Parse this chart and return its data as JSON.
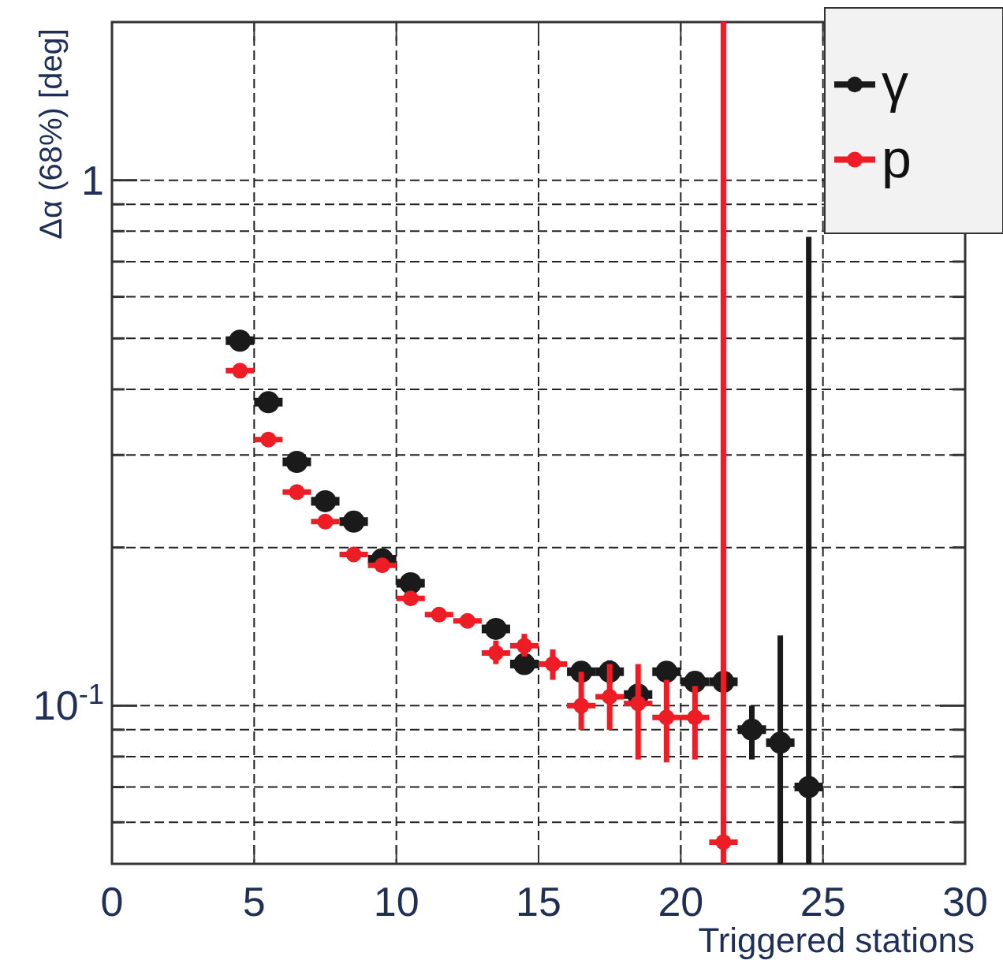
{
  "chart_data": {
    "type": "scatter",
    "xlabel": "Triggered stations",
    "ylabel": "Δα (68%) [deg]",
    "log": "y",
    "grid": true,
    "line_style": "dashed",
    "legend": "top right",
    "marker": "circle",
    "x": [
      4.5,
      5.5,
      6.5,
      7.5,
      8.5,
      9.5,
      10.5,
      11.5,
      12.5,
      13.5,
      14.5,
      15.5,
      16.5,
      17.5,
      18.5,
      19.5,
      20.5,
      21.5,
      22.5,
      23.5,
      24.5
    ],
    "xlim": [
      0,
      30
    ],
    "xticks": [
      0,
      5,
      10,
      15,
      20,
      25,
      30
    ],
    "ylim": [
      0.05,
      2
    ],
    "yticks": [
      {
        "value": 0.06,
        "label": null
      },
      {
        "value": 0.07,
        "label": null
      },
      {
        "value": 0.08,
        "label": null
      },
      {
        "value": 0.09,
        "label": null
      },
      {
        "value": 0.1,
        "label": "10$^{-1}$"
      },
      {
        "value": 0.2,
        "label": null
      },
      {
        "value": 0.3,
        "label": null
      },
      {
        "value": 0.4,
        "label": null
      },
      {
        "value": 0.5,
        "label": null
      },
      {
        "value": 0.6,
        "label": null
      },
      {
        "value": 0.7,
        "label": null
      },
      {
        "value": 0.8,
        "label": null
      },
      {
        "value": 0.9,
        "label": null
      },
      {
        "value": 1,
        "label": "1"
      }
    ],
    "series": [
      {
        "name": "γ",
        "color": "#1a1a1a",
        "values": [
          0.495,
          0.378,
          0.291,
          0.245,
          0.224,
          0.19,
          0.171,
          null,
          null,
          0.14,
          0.12,
          null,
          0.116,
          0.116,
          0.105,
          0.116,
          0.111,
          0.111,
          0.09,
          0.085,
          0.07
        ],
        "xerrors": [
          0.5,
          0.5,
          0.5,
          0.5,
          0.5,
          0.5,
          0.5,
          null,
          null,
          0.5,
          0.5,
          null,
          0.5,
          0.5,
          0.5,
          0.5,
          0.5,
          0.5,
          0.5,
          0.5,
          0.5
        ],
        "errors": [
          null,
          null,
          null,
          null,
          null,
          null,
          null,
          null,
          null,
          null,
          null,
          null,
          null,
          [
            0.11,
            0.122
          ],
          null,
          null,
          null,
          null,
          [
            0.079,
            0.1
          ],
          [
            0.05,
            0.136
          ],
          [
            0.05,
            0.78
          ]
        ]
      },
      {
        "name": "p",
        "color": "#ee1c25",
        "values": [
          0.434,
          0.321,
          0.255,
          0.224,
          0.194,
          0.185,
          0.16,
          0.149,
          0.145,
          0.126,
          0.13,
          0.12,
          0.1,
          0.104,
          0.101,
          0.095,
          0.095,
          0.055,
          null,
          null,
          null
        ],
        "xerrors": [
          0.5,
          0.5,
          0.5,
          0.5,
          0.5,
          0.5,
          0.5,
          0.5,
          0.5,
          0.5,
          0.5,
          0.5,
          0.5,
          0.5,
          0.5,
          0.5,
          0.5,
          0.5,
          null,
          null,
          null
        ],
        "errors": [
          null,
          null,
          null,
          null,
          null,
          null,
          null,
          null,
          null,
          [
            0.12,
            0.133
          ],
          [
            0.124,
            0.137
          ],
          [
            0.112,
            0.128
          ],
          [
            0.09,
            0.116
          ],
          [
            0.09,
            0.12
          ],
          [
            0.079,
            0.12
          ],
          [
            0.078,
            0.112
          ],
          [
            0.079,
            0.109
          ],
          [
            0.05,
            2
          ],
          null,
          null,
          null
        ]
      }
    ]
  }
}
